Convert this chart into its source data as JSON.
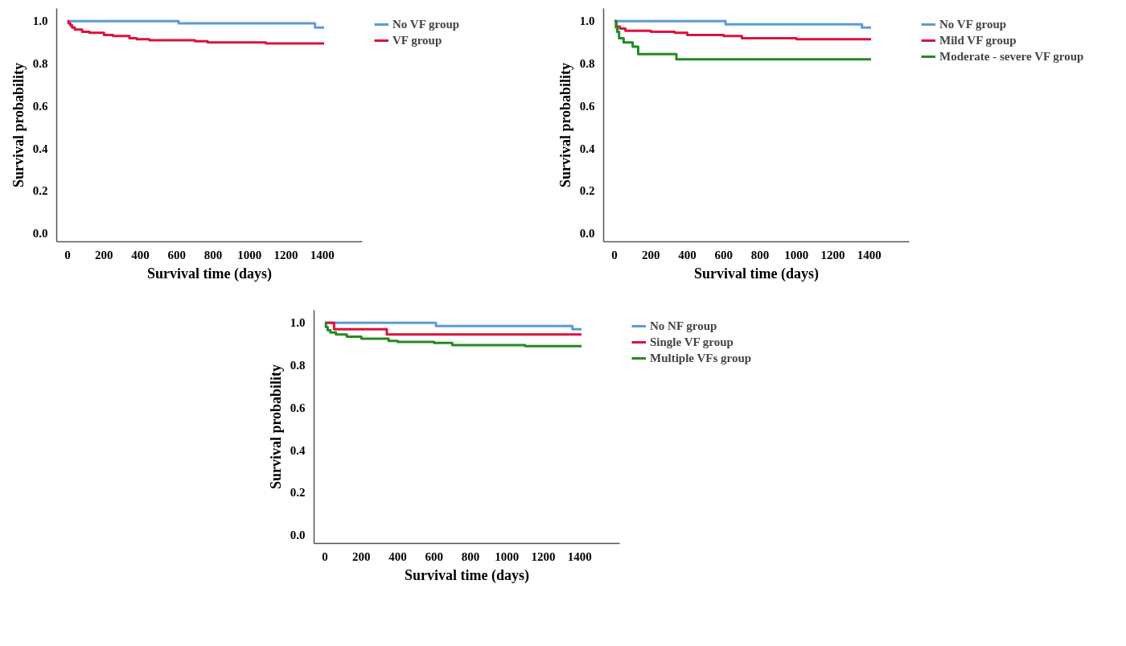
{
  "chart_data": [
    {
      "type": "step",
      "xlabel": "Survival time (days)",
      "ylabel": "Survival probability",
      "xlim": [
        -60,
        1620
      ],
      "ylim": [
        -0.04,
        1.06
      ],
      "xticks": [
        0,
        200,
        400,
        600,
        800,
        1000,
        1200,
        1400
      ],
      "yticks": [
        {
          "value": 0,
          "label": "0.0"
        },
        {
          "value": 0.2,
          "label": "0.2"
        },
        {
          "value": 0.4,
          "label": "0.4"
        },
        {
          "value": 0.6,
          "label": "0.6"
        },
        {
          "value": 0.8,
          "label": "0.8"
        },
        {
          "value": 1,
          "label": "1.0"
        }
      ],
      "grid": false,
      "legend": "right",
      "line_style": "solid",
      "series": [
        {
          "name": "No VF group",
          "color": "#5b9bd5",
          "x": [
            0,
            610,
            1360,
            1410
          ],
          "values": [
            1.0,
            0.99,
            0.97,
            0.97
          ]
        },
        {
          "name": "VF group",
          "color": "#d9143c",
          "x": [
            0,
            5,
            15,
            25,
            40,
            80,
            120,
            200,
            250,
            340,
            380,
            450,
            700,
            770,
            1090,
            1410
          ],
          "values": [
            1.0,
            0.99,
            0.98,
            0.97,
            0.96,
            0.95,
            0.945,
            0.935,
            0.93,
            0.92,
            0.915,
            0.91,
            0.905,
            0.9,
            0.895,
            0.895
          ]
        }
      ]
    },
    {
      "type": "step",
      "xlabel": "Survival time (days)",
      "ylabel": "Survival probability",
      "xlim": [
        -60,
        1620
      ],
      "ylim": [
        -0.04,
        1.06
      ],
      "xticks": [
        0,
        200,
        400,
        600,
        800,
        1000,
        1200,
        1400
      ],
      "yticks": [
        {
          "value": 0,
          "label": "0.0"
        },
        {
          "value": 0.2,
          "label": "0.2"
        },
        {
          "value": 0.4,
          "label": "0.4"
        },
        {
          "value": 0.6,
          "label": "0.6"
        },
        {
          "value": 0.8,
          "label": "0.8"
        },
        {
          "value": 1,
          "label": "1.0"
        }
      ],
      "grid": false,
      "legend": "right",
      "line_style": "solid",
      "series": [
        {
          "name": "No VF group",
          "color": "#5b9bd5",
          "x": [
            0,
            610,
            1360,
            1410
          ],
          "values": [
            1.0,
            0.985,
            0.97,
            0.97
          ]
        },
        {
          "name": "Mild VF group",
          "color": "#d9143c",
          "x": [
            0,
            10,
            30,
            60,
            200,
            330,
            400,
            600,
            700,
            1000,
            1410
          ],
          "values": [
            1.0,
            0.975,
            0.965,
            0.955,
            0.95,
            0.945,
            0.935,
            0.93,
            0.92,
            0.915,
            0.915
          ]
        },
        {
          "name": "Moderate - severe VF group",
          "color": "#228b22",
          "x": [
            0,
            8,
            15,
            25,
            50,
            100,
            130,
            340,
            1410
          ],
          "values": [
            1.0,
            0.97,
            0.95,
            0.92,
            0.9,
            0.88,
            0.845,
            0.82,
            0.82
          ]
        }
      ]
    },
    {
      "type": "step",
      "xlabel": "Survival time (days)",
      "ylabel": "Survival probability",
      "xlim": [
        -60,
        1620
      ],
      "ylim": [
        -0.04,
        1.06
      ],
      "xticks": [
        0,
        200,
        400,
        600,
        800,
        1000,
        1200,
        1400
      ],
      "yticks": [
        {
          "value": 0,
          "label": "0.0"
        },
        {
          "value": 0.2,
          "label": "0.2"
        },
        {
          "value": 0.4,
          "label": "0.4"
        },
        {
          "value": 0.6,
          "label": "0.6"
        },
        {
          "value": 0.8,
          "label": "0.8"
        },
        {
          "value": 1,
          "label": "1.0"
        }
      ],
      "grid": false,
      "legend": "right",
      "line_style": "solid",
      "series": [
        {
          "name": "No NF group",
          "color": "#5b9bd5",
          "x": [
            0,
            610,
            1360,
            1410
          ],
          "values": [
            1.0,
            0.985,
            0.97,
            0.97
          ]
        },
        {
          "name": "Single VF group",
          "color": "#d9143c",
          "x": [
            0,
            50,
            340,
            1410
          ],
          "values": [
            1.0,
            0.97,
            0.945,
            0.945
          ]
        },
        {
          "name": "Multiple VFs group",
          "color": "#228b22",
          "x": [
            0,
            5,
            15,
            30,
            60,
            120,
            200,
            350,
            400,
            600,
            700,
            1100,
            1410
          ],
          "values": [
            1.0,
            0.98,
            0.965,
            0.955,
            0.945,
            0.935,
            0.925,
            0.915,
            0.91,
            0.905,
            0.895,
            0.89,
            0.89
          ]
        }
      ]
    }
  ]
}
